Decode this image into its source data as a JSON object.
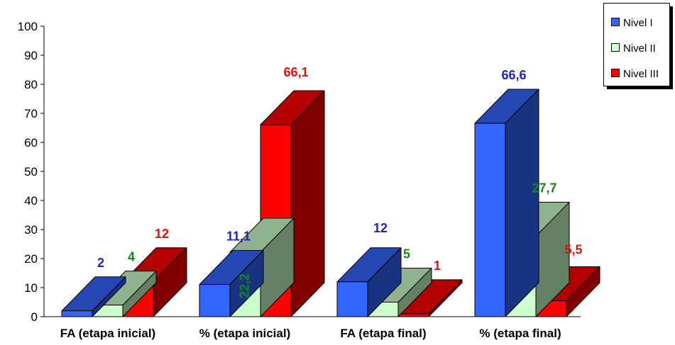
{
  "chart_data": {
    "type": "bar",
    "title": "",
    "xlabel": "",
    "ylabel": "",
    "ylim": [
      0,
      100
    ],
    "yticks": [
      "0",
      "10",
      "20",
      "30",
      "40",
      "50",
      "60",
      "70",
      "80",
      "90",
      "100"
    ],
    "categories": [
      "FA (etapa inicial)",
      "% (etapa inicial)",
      "FA (etapa final)",
      "% (etapa final)"
    ],
    "series": [
      {
        "name": "Nivel I",
        "color": "#3366ff",
        "label_color": "#1f1fc8",
        "values": [
          2,
          11.1,
          12,
          66.6
        ],
        "labels": [
          "2",
          "11,1",
          "12",
          "66,6"
        ]
      },
      {
        "name": "Nivel II",
        "color": "#ccffcc",
        "label_color": "#138a13",
        "values": [
          4,
          22.2,
          5,
          27.7
        ],
        "labels": [
          "4",
          "22,2",
          "5",
          "27,7"
        ]
      },
      {
        "name": "Nivel III",
        "color": "#ff0000",
        "label_color": "#e01010",
        "values": [
          12,
          66.1,
          1,
          5.5
        ],
        "labels": [
          "12",
          "66,1",
          "1",
          "5,5"
        ]
      }
    ],
    "grid": false,
    "three_d": true,
    "legend_position": "top-right"
  }
}
